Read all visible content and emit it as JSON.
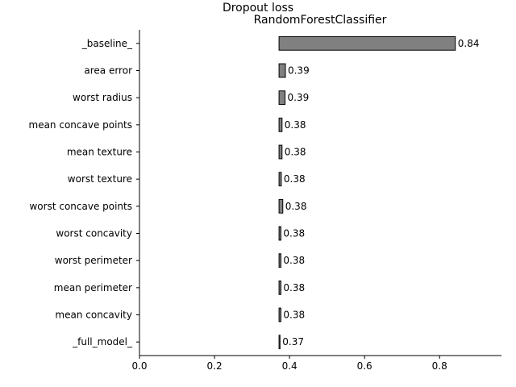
{
  "chart_data": {
    "type": "bar",
    "orientation": "horizontal",
    "suptitle": "Dropout loss",
    "title": "RandomForestClassifier",
    "xlabel": "",
    "ylabel": "",
    "xlim": [
      0,
      0.965
    ],
    "xticks": [
      0.0,
      0.2,
      0.4,
      0.6,
      0.8
    ],
    "xtick_labels": [
      "0.0",
      "0.2",
      "0.4",
      "0.6",
      "0.8"
    ],
    "baseline_start": 0.372,
    "categories": [
      "_baseline_",
      "area error",
      "worst radius",
      "mean concave points",
      "mean texture",
      "worst texture",
      "worst concave points",
      "worst concavity",
      "worst perimeter",
      "mean perimeter",
      "mean concavity",
      "_full_model_"
    ],
    "values": [
      0.842,
      0.389,
      0.388,
      0.38,
      0.38,
      0.378,
      0.382,
      0.377,
      0.377,
      0.377,
      0.377,
      0.372
    ],
    "value_labels": [
      "0.84",
      "0.39",
      "0.39",
      "0.38",
      "0.38",
      "0.38",
      "0.38",
      "0.38",
      "0.38",
      "0.38",
      "0.38",
      "0.37"
    ],
    "bar_color": "#808080",
    "edge_color": "#000000",
    "grid": false
  }
}
